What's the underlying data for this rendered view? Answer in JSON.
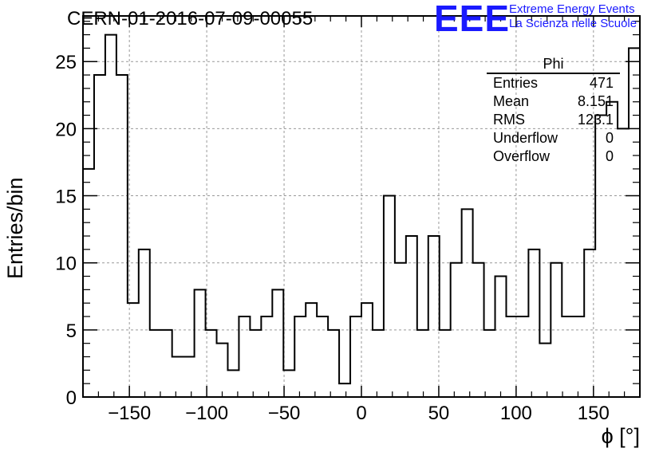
{
  "title": "CERN-01-2016-07-09-00055",
  "logo": {
    "mark": "EEE",
    "line1": "Extreme Energy Events",
    "line2": "La Scienza nelle Scuole",
    "color": "#1a1aff"
  },
  "stats_box": {
    "name": "Phi",
    "rows": [
      {
        "label": "Entries",
        "value": "471"
      },
      {
        "label": "Mean",
        "value": "8.151"
      },
      {
        "label": "RMS",
        "value": "123.1"
      },
      {
        "label": "Underflow",
        "value": "0"
      },
      {
        "label": "Overflow",
        "value": "0"
      }
    ]
  },
  "chart_data": {
    "type": "histogram",
    "title": "CERN-01-2016-07-09-00055",
    "xlabel": "ϕ [°]",
    "ylabel": "Entries/bin",
    "xlim": [
      -180,
      180
    ],
    "ylim": [
      0,
      28.4
    ],
    "bin_width": 7.2,
    "x_ticks": [
      -150,
      -100,
      -50,
      0,
      50,
      100,
      150
    ],
    "x_tick_labels": [
      "−150",
      "−100",
      "−50",
      "0",
      "50",
      "100",
      "150"
    ],
    "y_ticks": [
      0,
      5,
      10,
      15,
      20,
      25
    ],
    "y_tick_labels": [
      "0",
      "5",
      "10",
      "15",
      "20",
      "25"
    ],
    "grid": true,
    "bin_edges_start": -180,
    "values": [
      17,
      24,
      27,
      24,
      7,
      11,
      5,
      5,
      3,
      3,
      8,
      5,
      4,
      2,
      6,
      5,
      6,
      8,
      2,
      6,
      7,
      6,
      5,
      1,
      6,
      7,
      5,
      15,
      10,
      12,
      5,
      12,
      5,
      10,
      14,
      10,
      5,
      9,
      6,
      6,
      11,
      4,
      10,
      6,
      6,
      11,
      21,
      22,
      20,
      26
    ],
    "line_color": "#000000"
  }
}
